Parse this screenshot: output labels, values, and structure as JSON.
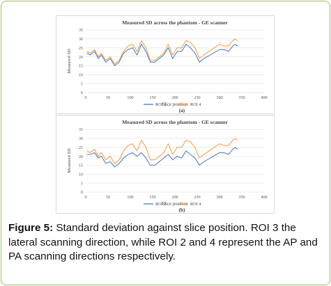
{
  "colors": {
    "roi3": "#5b7fbf",
    "roi2": "#5b7fbf",
    "roi4": "#f0a35a",
    "grid": "#e3e3e3",
    "axis_text": "#555555",
    "frame": "#9bbf6a"
  },
  "chart_data": [
    {
      "type": "line",
      "title": "Measured SD across the phantom - GE scanner",
      "xlabel": "Slice position",
      "ylabel": "Measured SD",
      "xlim": [
        0,
        400
      ],
      "ylim": [
        0,
        35
      ],
      "x_ticks": [
        "0",
        "50",
        "100",
        "150",
        "200",
        "250",
        "300",
        "350",
        "400"
      ],
      "y_ticks": [
        "0",
        "5",
        "10",
        "15",
        "20",
        "25",
        "30",
        "35"
      ],
      "grid": true,
      "legend_position": "bottom",
      "panel_label": "(a)",
      "series": [
        {
          "name": "ROI 3",
          "color": "#5b7fbf",
          "x": [
            3,
            10,
            20,
            28,
            35,
            45,
            55,
            65,
            75,
            85,
            95,
            105,
            115,
            125,
            135,
            145,
            155,
            165,
            175,
            185,
            195,
            205,
            215,
            225,
            235,
            245,
            255,
            265,
            300,
            310,
            320,
            330,
            335,
            340
          ],
          "y": [
            22,
            21,
            23,
            19,
            21,
            17,
            19,
            15,
            17,
            22,
            24,
            25,
            21,
            27,
            23,
            17,
            17,
            19,
            21,
            25,
            19,
            23,
            23,
            27,
            25,
            22,
            17,
            19,
            24,
            24,
            23,
            26,
            27,
            26
          ]
        },
        {
          "name": "ROI 4",
          "color": "#f0a35a",
          "x": [
            3,
            10,
            20,
            28,
            35,
            45,
            55,
            65,
            75,
            85,
            95,
            105,
            115,
            125,
            135,
            145,
            155,
            165,
            175,
            185,
            195,
            205,
            215,
            225,
            235,
            245,
            255,
            265,
            300,
            310,
            320,
            330,
            335,
            340
          ],
          "y": [
            23,
            22,
            24,
            20,
            22,
            18,
            20,
            16,
            18,
            23,
            26,
            27,
            23,
            29,
            25,
            18,
            18,
            20,
            22,
            27,
            21,
            25,
            25,
            29,
            28,
            25,
            19,
            21,
            27,
            26,
            26,
            29,
            30,
            29
          ]
        }
      ]
    },
    {
      "type": "line",
      "title": "Measured SD across the phantom - GE scanner",
      "xlabel": "Slice position",
      "ylabel": "Measured SD",
      "xlim": [
        0,
        400
      ],
      "ylim": [
        0,
        35
      ],
      "x_ticks": [
        "0",
        "50",
        "100",
        "150",
        "200",
        "250",
        "300",
        "350",
        "400"
      ],
      "y_ticks": [
        "0",
        "5",
        "10",
        "15",
        "20",
        "25",
        "30",
        "35"
      ],
      "grid": true,
      "legend_position": "bottom",
      "panel_label": "(b)",
      "series": [
        {
          "name": "ROI 2",
          "color": "#5b7fbf",
          "x": [
            3,
            10,
            20,
            28,
            35,
            45,
            55,
            65,
            75,
            85,
            95,
            105,
            115,
            125,
            135,
            145,
            155,
            165,
            175,
            185,
            195,
            205,
            215,
            225,
            235,
            245,
            255,
            265,
            300,
            310,
            320,
            330,
            335,
            340
          ],
          "y": [
            21,
            21,
            22,
            19,
            20,
            16,
            17,
            14,
            16,
            19,
            21,
            22,
            20,
            22,
            19,
            15,
            15,
            17,
            19,
            21,
            18,
            20,
            19,
            23,
            21,
            19,
            15,
            17,
            22,
            22,
            21,
            24,
            25,
            24
          ]
        },
        {
          "name": "ROI 4",
          "color": "#f0a35a",
          "x": [
            3,
            10,
            20,
            28,
            35,
            45,
            55,
            65,
            75,
            85,
            95,
            105,
            115,
            125,
            135,
            145,
            155,
            165,
            175,
            185,
            195,
            205,
            215,
            225,
            235,
            245,
            255,
            265,
            300,
            310,
            320,
            330,
            335,
            340
          ],
          "y": [
            23,
            22,
            24,
            20,
            22,
            18,
            20,
            16,
            18,
            23,
            26,
            27,
            23,
            29,
            25,
            18,
            18,
            20,
            22,
            27,
            21,
            25,
            25,
            29,
            28,
            25,
            19,
            21,
            27,
            26,
            26,
            29,
            30,
            29
          ]
        }
      ]
    }
  ],
  "caption": {
    "label": "Figure 5:",
    "text": " Standard deviation against slice position. ROI 3 the lateral scanning direction, while ROI 2 and 4 represent the AP and PA scanning directions respectively."
  }
}
